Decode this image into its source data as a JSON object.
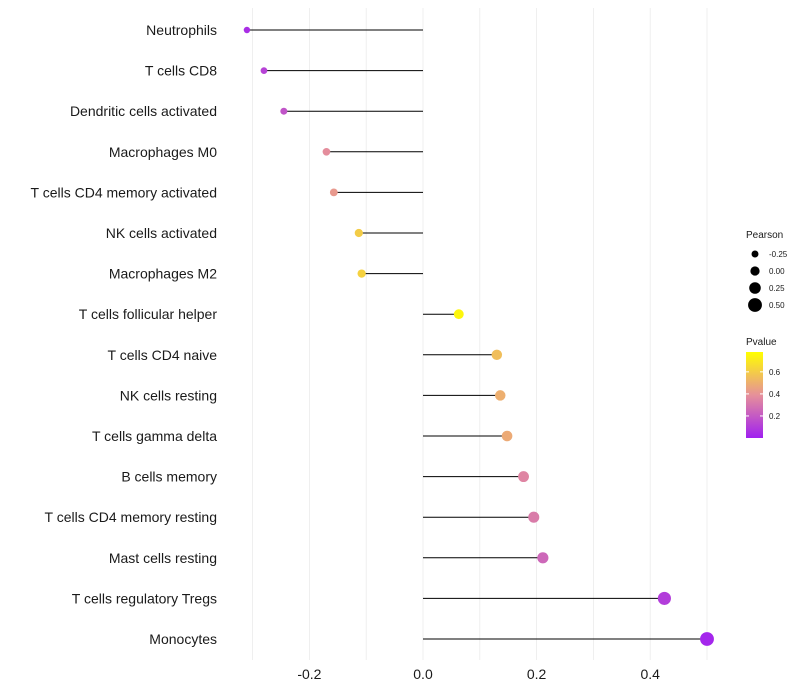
{
  "chart_data": {
    "type": "lollipop",
    "xlabel": "",
    "ylabel": "",
    "xlim": [
      -0.3,
      0.5
    ],
    "xticks": [
      -0.2,
      0.0,
      0.2,
      0.4
    ],
    "xtick_labels": [
      "-0.2",
      "0.0",
      "0.2",
      "0.4"
    ],
    "categories": [
      "Neutrophils",
      "T cells CD8",
      "Dendritic cells activated",
      "Macrophages M0",
      "T cells CD4 memory activated",
      "NK cells activated",
      "Macrophages M2",
      "T cells follicular helper",
      "T cells CD4 naive",
      "NK cells resting",
      "T cells gamma delta",
      "B cells memory",
      "T cells CD4 memory resting",
      "Mast cells resting",
      "T cells regulatory  Tregs",
      "Monocytes"
    ],
    "pearson": [
      -0.31,
      -0.28,
      -0.245,
      -0.17,
      -0.157,
      -0.113,
      -0.108,
      0.063,
      0.13,
      0.136,
      0.148,
      0.177,
      0.195,
      0.211,
      0.425,
      0.5
    ],
    "pvalue": [
      0.05,
      0.12,
      0.18,
      0.38,
      0.42,
      0.6,
      0.62,
      0.75,
      0.55,
      0.5,
      0.48,
      0.35,
      0.32,
      0.25,
      0.1,
      0.02
    ],
    "size_legend": {
      "title": "Pearson",
      "labels": [
        "-0.25",
        "0.00",
        "0.25",
        "0.50"
      ],
      "values": [
        -0.25,
        0.0,
        0.25,
        0.5
      ]
    },
    "color_legend": {
      "title": "Pvalue",
      "labels": [
        "0.6",
        "0.4",
        "0.2"
      ],
      "values": [
        0.6,
        0.4,
        0.2
      ],
      "range": [
        0.0,
        0.78
      ],
      "low_color": "#a020f0",
      "mid_color": "#e6909a",
      "high_color": "#ffff00"
    },
    "stem_color": "#000000",
    "grid_color": "#ebebeb"
  }
}
